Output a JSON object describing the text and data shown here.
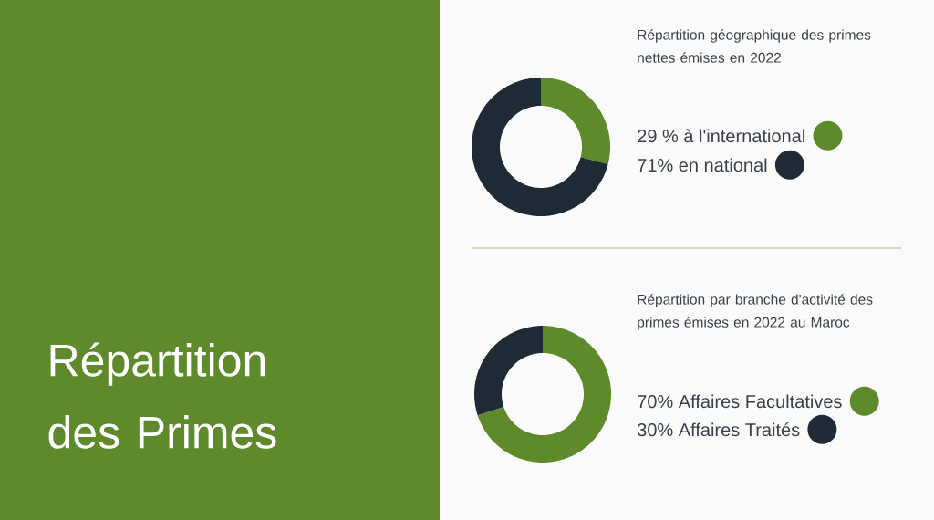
{
  "chart_data": [
    {
      "type": "other",
      "title": "Répartition des Primes"
    },
    {
      "type": "donut",
      "title": "Répartition géographique des primes nettes émises en 2022",
      "categories": [
        "29 % à l'international",
        "71% en national"
      ],
      "values": [
        29,
        71
      ],
      "colors": [
        "#5f8a2b",
        "#1e2a35"
      ],
      "legend": "right"
    },
    {
      "type": "donut",
      "title": "Répartition par branche d'activité des primes émises en 2022 au Maroc",
      "categories": [
        "70% Affaires Facultatives",
        "30% Affaires Traités"
      ],
      "values": [
        70,
        30
      ],
      "colors": [
        "#5f8a2b",
        "#1e2a35"
      ],
      "legend": "right"
    }
  ]
}
